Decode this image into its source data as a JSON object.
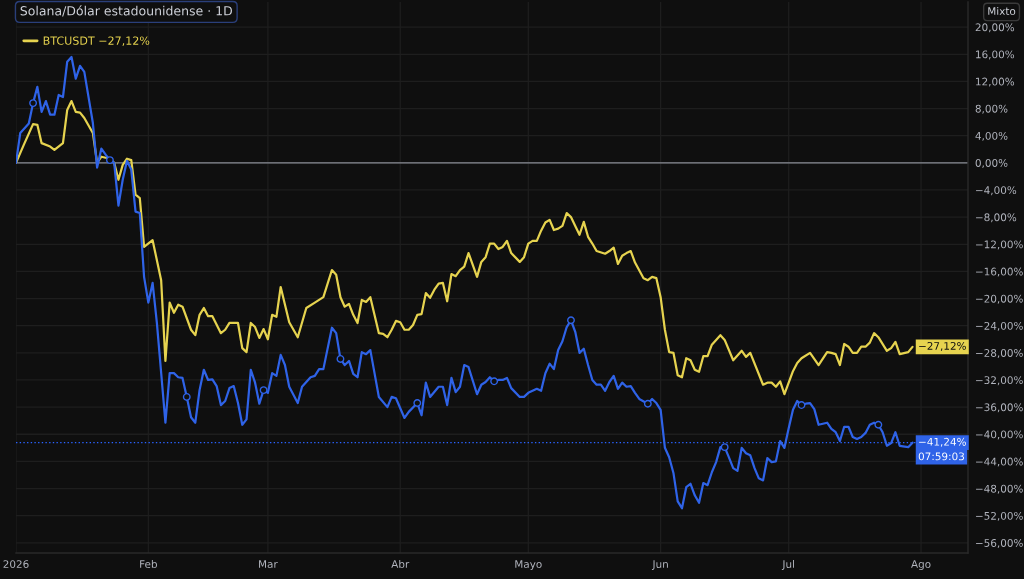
{
  "chart_data": {
    "type": "line",
    "title": "Solana/Dólar estadounidense · 1D",
    "series": [
      {
        "name": "BTCUSDT −27,12%",
        "color": "#e6d34f",
        "x": [
          "2026-01-01",
          "2026-01-03",
          "2026-01-05",
          "2026-01-06",
          "2026-01-07",
          "2026-01-09",
          "2026-01-10",
          "2026-01-12",
          "2026-01-13",
          "2026-01-14",
          "2026-01-15",
          "2026-01-16",
          "2026-01-17",
          "2026-01-19",
          "2026-01-20",
          "2026-01-21",
          "2026-01-23",
          "2026-01-24",
          "2026-01-25",
          "2026-01-26",
          "2026-01-27",
          "2026-01-28",
          "2026-01-29",
          "2026-01-30",
          "2026-01-31",
          "2026-02-02",
          "2026-02-04",
          "2026-02-05",
          "2026-02-06",
          "2026-02-07",
          "2026-02-08",
          "2026-02-09",
          "2026-02-11",
          "2026-02-12",
          "2026-02-13",
          "2026-02-14",
          "2026-02-15",
          "2026-02-16",
          "2026-02-18",
          "2026-02-19",
          "2026-02-20",
          "2026-02-22",
          "2026-02-23",
          "2026-02-24",
          "2026-02-25",
          "2026-02-26",
          "2026-02-27",
          "2026-02-28",
          "2026-03-01",
          "2026-03-02",
          "2026-03-03",
          "2026-03-04",
          "2026-03-06",
          "2026-03-08",
          "2026-03-10",
          "2026-03-12",
          "2026-03-14",
          "2026-03-16",
          "2026-03-17",
          "2026-03-18",
          "2026-03-19",
          "2026-03-20",
          "2026-03-21",
          "2026-03-22",
          "2026-03-23",
          "2026-03-24",
          "2026-03-25",
          "2026-03-27",
          "2026-03-28",
          "2026-03-29",
          "2026-03-30",
          "2026-03-31",
          "2026-04-01",
          "2026-04-02",
          "2026-04-03",
          "2026-04-04",
          "2026-04-05",
          "2026-04-06",
          "2026-04-07",
          "2026-04-08",
          "2026-04-09",
          "2026-04-10",
          "2026-04-11",
          "2026-04-12",
          "2026-04-13",
          "2026-04-14",
          "2026-04-15",
          "2026-04-16",
          "2026-04-17",
          "2026-04-19",
          "2026-04-20",
          "2026-04-21",
          "2026-04-22",
          "2026-04-23",
          "2026-04-24",
          "2026-04-25",
          "2026-04-26",
          "2026-04-27",
          "2026-04-29",
          "2026-04-30",
          "2026-05-01",
          "2026-05-02",
          "2026-05-03",
          "2026-05-04",
          "2026-05-05",
          "2026-05-06",
          "2026-05-07",
          "2026-05-08",
          "2026-05-09",
          "2026-05-10",
          "2026-05-11",
          "2026-05-12",
          "2026-05-13",
          "2026-05-14",
          "2026-05-15",
          "2026-05-16",
          "2026-05-17",
          "2026-05-19",
          "2026-05-20",
          "2026-05-21",
          "2026-05-22",
          "2026-05-23",
          "2026-05-24",
          "2026-05-25",
          "2026-05-26",
          "2026-05-28",
          "2026-05-29",
          "2026-05-30",
          "2026-05-31",
          "2026-06-01",
          "2026-06-02",
          "2026-06-03",
          "2026-06-04",
          "2026-06-05",
          "2026-06-06",
          "2026-06-07",
          "2026-06-08",
          "2026-06-09",
          "2026-06-10",
          "2026-06-11",
          "2026-06-12",
          "2026-06-13",
          "2026-06-15",
          "2026-06-16",
          "2026-06-18",
          "2026-06-20",
          "2026-06-21",
          "2026-06-22",
          "2026-06-25",
          "2026-06-26",
          "2026-06-27",
          "2026-06-28",
          "2026-06-29",
          "2026-06-30",
          "2026-07-02",
          "2026-07-03",
          "2026-07-04",
          "2026-07-06",
          "2026-07-08",
          "2026-07-10",
          "2026-07-11",
          "2026-07-12",
          "2026-07-13",
          "2026-07-14",
          "2026-07-15",
          "2026-07-16",
          "2026-07-17",
          "2026-07-18",
          "2026-07-19",
          "2026-07-20",
          "2026-07-21",
          "2026-07-22",
          "2026-07-24",
          "2026-07-25",
          "2026-07-26",
          "2026-07-27",
          "2026-07-29",
          "2026-07-30"
        ],
        "values": [
          0,
          2.9,
          5.7,
          5.6,
          2.9,
          2.4,
          1.9,
          2.9,
          7.8,
          9.1,
          7.5,
          7.4,
          6.6,
          4.4,
          0,
          0.9,
          0.6,
          0,
          -2.5,
          -0.3,
          0.6,
          0.4,
          -4.7,
          -5.2,
          -12.4,
          -11.4,
          -17.3,
          -29.2,
          -20.6,
          -22.1,
          -20.9,
          -21.2,
          -24.6,
          -25.4,
          -22.4,
          -21.4,
          -22.6,
          -22.6,
          -25.1,
          -24.6,
          -23.6,
          -23.6,
          -27.3,
          -27.9,
          -23.6,
          -24.2,
          -25.8,
          -24.5,
          -26.0,
          -22.4,
          -22.7,
          -18.3,
          -23.5,
          -25.7,
          -21.4,
          -20.6,
          -19.8,
          -15.8,
          -16.5,
          -19.8,
          -21.2,
          -20.8,
          -22.4,
          -23.6,
          -20.2,
          -20.5,
          -19.8,
          -25.1,
          -25.2,
          -25.7,
          -24.6,
          -23.3,
          -23.5,
          -24.6,
          -24.6,
          -23.9,
          -22.4,
          -22.3,
          -19.2,
          -19.9,
          -18.7,
          -17.8,
          -17.7,
          -20.4,
          -16.4,
          -16.7,
          -15.8,
          -15.3,
          -13.3,
          -16.8,
          -14.6,
          -13.9,
          -11.9,
          -11.9,
          -12.7,
          -12.4,
          -11.5,
          -13.3,
          -14.6,
          -13.9,
          -11.9,
          -11.5,
          -11.5,
          -10.0,
          -8.8,
          -8.4,
          -9.9,
          -9.7,
          -9.3,
          -7.4,
          -8.0,
          -9.3,
          -10.6,
          -8.7,
          -10.9,
          -11.9,
          -13.0,
          -13.4,
          -13.0,
          -12.5,
          -14.9,
          -13.7,
          -13.3,
          -13.0,
          -14.7,
          -17.0,
          -17.3,
          -16.8,
          -17.0,
          -19.8,
          -24.6,
          -27.9,
          -28.0,
          -31.3,
          -31.6,
          -28.8,
          -29.1,
          -30.5,
          -30.8,
          -28.5,
          -28.5,
          -26.8,
          -25.4,
          -26.1,
          -29.1,
          -27.7,
          -28.6,
          -28.0,
          -32.7,
          -32.4,
          -32.4,
          -33.0,
          -32.2,
          -34.1,
          -30.7,
          -29.5,
          -28.8,
          -28.0,
          -29.8,
          -27.9,
          -28.0,
          -28.2,
          -29.8,
          -26.7,
          -27.1,
          -28.0,
          -28.0,
          -27.1,
          -27.1,
          -26.5,
          -25.1,
          -25.7,
          -27.7,
          -27.3,
          -26.4,
          -28.2,
          -27.9,
          -27.12
        ]
      },
      {
        "color": "#2f63e8",
        "x": [
          "2026-01-01",
          "2026-01-02",
          "2026-01-04",
          "2026-01-05",
          "2026-01-06",
          "2026-01-07",
          "2026-01-08",
          "2026-01-09",
          "2026-01-10",
          "2026-01-11",
          "2026-01-12",
          "2026-01-13",
          "2026-01-14",
          "2026-01-15",
          "2026-01-16",
          "2026-01-17",
          "2026-01-19",
          "2026-01-20",
          "2026-01-21",
          "2026-01-22",
          "2026-01-23",
          "2026-01-24",
          "2026-01-25",
          "2026-01-26",
          "2026-01-27",
          "2026-01-28",
          "2026-01-29",
          "2026-01-30",
          "2026-01-31",
          "2026-02-01",
          "2026-02-02",
          "2026-02-03",
          "2026-02-05",
          "2026-02-06",
          "2026-02-07",
          "2026-02-08",
          "2026-02-09",
          "2026-02-10",
          "2026-02-11",
          "2026-02-12",
          "2026-02-13",
          "2026-02-14",
          "2026-02-15",
          "2026-02-16",
          "2026-02-17",
          "2026-02-18",
          "2026-02-19",
          "2026-02-20",
          "2026-02-21",
          "2026-02-22",
          "2026-02-23",
          "2026-02-24",
          "2026-02-25",
          "2026-02-26",
          "2026-02-27",
          "2026-02-28",
          "2026-03-01",
          "2026-03-02",
          "2026-03-03",
          "2026-03-04",
          "2026-03-05",
          "2026-03-06",
          "2026-03-08",
          "2026-03-09",
          "2026-03-11",
          "2026-03-12",
          "2026-03-13",
          "2026-03-14",
          "2026-03-16",
          "2026-03-17",
          "2026-03-18",
          "2026-03-19",
          "2026-03-20",
          "2026-03-21",
          "2026-03-22",
          "2026-03-23",
          "2026-03-24",
          "2026-03-25",
          "2026-03-27",
          "2026-03-29",
          "2026-03-30",
          "2026-03-31",
          "2026-04-02",
          "2026-04-03",
          "2026-04-05",
          "2026-04-06",
          "2026-04-07",
          "2026-04-08",
          "2026-04-10",
          "2026-04-11",
          "2026-04-12",
          "2026-04-13",
          "2026-04-14",
          "2026-04-15",
          "2026-04-16",
          "2026-04-17",
          "2026-04-19",
          "2026-04-20",
          "2026-04-21",
          "2026-04-22",
          "2026-04-23",
          "2026-04-24",
          "2026-04-25",
          "2026-04-26",
          "2026-04-27",
          "2026-04-29",
          "2026-04-30",
          "2026-05-01",
          "2026-05-03",
          "2026-05-04",
          "2026-05-05",
          "2026-05-06",
          "2026-05-07",
          "2026-05-08",
          "2026-05-09",
          "2026-05-10",
          "2026-05-11",
          "2026-05-12",
          "2026-05-13",
          "2026-05-14",
          "2026-05-15",
          "2026-05-16",
          "2026-05-17",
          "2026-05-18",
          "2026-05-19",
          "2026-05-20",
          "2026-05-21",
          "2026-05-22",
          "2026-05-23",
          "2026-05-24",
          "2026-05-25",
          "2026-05-26",
          "2026-05-27",
          "2026-05-29",
          "2026-05-30",
          "2026-05-31",
          "2026-06-01",
          "2026-06-02",
          "2026-06-03",
          "2026-06-04",
          "2026-06-05",
          "2026-06-06",
          "2026-06-07",
          "2026-06-08",
          "2026-06-09",
          "2026-06-10",
          "2026-06-11",
          "2026-06-12",
          "2026-06-13",
          "2026-06-14",
          "2026-06-15",
          "2026-06-16",
          "2026-06-17",
          "2026-06-18",
          "2026-06-19",
          "2026-06-20",
          "2026-06-21",
          "2026-06-22",
          "2026-06-23",
          "2026-06-24",
          "2026-06-25",
          "2026-06-26",
          "2026-06-27",
          "2026-06-28",
          "2026-06-29",
          "2026-06-30",
          "2026-07-01",
          "2026-07-02",
          "2026-07-03",
          "2026-07-04",
          "2026-07-05",
          "2026-07-06",
          "2026-07-07",
          "2026-07-08",
          "2026-07-10",
          "2026-07-11",
          "2026-07-12",
          "2026-07-13",
          "2026-07-14",
          "2026-07-15",
          "2026-07-16",
          "2026-07-17",
          "2026-07-18",
          "2026-07-19",
          "2026-07-20",
          "2026-07-21",
          "2026-07-22",
          "2026-07-23",
          "2026-07-24",
          "2026-07-25",
          "2026-07-26",
          "2026-07-27",
          "2026-07-29",
          "2026-07-30"
        ],
        "values": [
          0,
          4.4,
          5.8,
          8.8,
          11.2,
          7.5,
          9.1,
          7.1,
          7.1,
          10.0,
          9.7,
          14.9,
          15.6,
          12.4,
          14.3,
          13.4,
          5.9,
          -0.7,
          2.1,
          1.2,
          0.4,
          0,
          -6.3,
          -2.5,
          0.3,
          -1.0,
          -7.2,
          -7.4,
          -16.8,
          -20.6,
          -17.7,
          -23.6,
          -38.3,
          -31.0,
          -31.0,
          -31.6,
          -31.7,
          -34.5,
          -37.5,
          -38.3,
          -33.5,
          -30.5,
          -32.0,
          -31.9,
          -32.9,
          -35.7,
          -35.1,
          -33.2,
          -32.9,
          -35.4,
          -38.6,
          -37.8,
          -30.5,
          -32.4,
          -35.5,
          -33.5,
          -33.9,
          -31.0,
          -31.4,
          -28.3,
          -29.8,
          -33.0,
          -35.4,
          -33.0,
          -31.6,
          -31.4,
          -30.4,
          -30.4,
          -24.3,
          -25.1,
          -28.9,
          -29.8,
          -29.2,
          -31.1,
          -31.6,
          -27.9,
          -28.2,
          -27.6,
          -34.5,
          -36.0,
          -34.5,
          -34.7,
          -37.6,
          -36.7,
          -35.4,
          -37.2,
          -32.4,
          -34.5,
          -33.0,
          -33.0,
          -35.7,
          -31.7,
          -33.8,
          -33.0,
          -29.8,
          -30.1,
          -34.1,
          -32.7,
          -32.3,
          -31.6,
          -32.2,
          -32.0,
          -32.0,
          -31.7,
          -33.2,
          -34.5,
          -34.5,
          -33.9,
          -33.3,
          -33.6,
          -31.0,
          -29.6,
          -30.4,
          -27.6,
          -26.3,
          -24.2,
          -23.2,
          -24.9,
          -28.0,
          -27.4,
          -29.8,
          -32.0,
          -32.7,
          -32.7,
          -33.6,
          -32.3,
          -31.4,
          -33.3,
          -32.4,
          -33.0,
          -32.9,
          -33.9,
          -34.8,
          -35.5,
          -34.8,
          -35.4,
          -36.4,
          -42.0,
          -43.4,
          -45.7,
          -49.9,
          -50.9,
          -47.8,
          -47.3,
          -49.0,
          -50.1,
          -47.2,
          -47.5,
          -45.6,
          -44.1,
          -41.9,
          -41.9,
          -43.4,
          -45.0,
          -45.4,
          -42.0,
          -42.8,
          -43.1,
          -45.0,
          -46.5,
          -46.8,
          -43.5,
          -44.1,
          -44.0,
          -41.0,
          -42.0,
          -39.1,
          -36.4,
          -35.1,
          -35.7,
          -35.5,
          -35.4,
          -36.3,
          -38.6,
          -38.3,
          -39.2,
          -39.7,
          -41.0,
          -38.9,
          -38.9,
          -40.4,
          -40.7,
          -40.4,
          -39.8,
          -38.6,
          -38.3,
          -38.6,
          -39.7,
          -41.7,
          -41.3,
          -39.7,
          -41.7,
          -41.9,
          -41.24
        ]
      },
      {
        "type": "scatter",
        "color": "#2f63e8",
        "marker": "circle",
        "x": [
          "2026-01-05",
          "2026-01-23",
          "2026-02-10",
          "2026-02-28",
          "2026-03-18",
          "2026-04-05",
          "2026-04-23",
          "2026-05-11",
          "2026-05-29",
          "2026-06-16",
          "2026-07-04",
          "2026-07-22"
        ],
        "values": [
          8.8,
          0.4,
          -34.5,
          -33.5,
          -28.9,
          -35.4,
          -32.2,
          -23.2,
          -35.5,
          -41.9,
          -35.7,
          -38.6
        ]
      }
    ],
    "xlim": [
      "2026-01-01",
      "2026-08-12"
    ],
    "xticks": [
      {
        "value": "2026-01-01",
        "label": "2026"
      },
      {
        "value": "2026-02-01",
        "label": "Feb"
      },
      {
        "value": "2026-03-01",
        "label": "Mar"
      },
      {
        "value": "2026-04-01",
        "label": "Abr"
      },
      {
        "value": "2026-05-01",
        "label": "Mayo"
      },
      {
        "value": "2026-06-01",
        "label": "Jun"
      },
      {
        "value": "2026-07-01",
        "label": "Jul"
      },
      {
        "value": "2026-08-01",
        "label": "Ago"
      }
    ],
    "ylim": [
      -57.5,
      23.7
    ],
    "yticks": [
      {
        "value": 20,
        "label": "20,00%"
      },
      {
        "value": 16,
        "label": "16,00%"
      },
      {
        "value": 12,
        "label": "12,00%"
      },
      {
        "value": 8,
        "label": "8,00%"
      },
      {
        "value": 4,
        "label": "4,00%"
      },
      {
        "value": 0,
        "label": "0,00%"
      },
      {
        "value": -4,
        "label": "−4,00%"
      },
      {
        "value": -8,
        "label": "−8,00%"
      },
      {
        "value": -12,
        "label": "−12,00%"
      },
      {
        "value": -16,
        "label": "−16,00%"
      },
      {
        "value": -20,
        "label": "−20,00%"
      },
      {
        "value": -24,
        "label": "−24,00%"
      },
      {
        "value": -28,
        "label": "−28,00%"
      },
      {
        "value": -32,
        "label": "−32,00%"
      },
      {
        "value": -36,
        "label": "−36,00%"
      },
      {
        "value": -40,
        "label": "−40,00%"
      },
      {
        "value": -44,
        "label": "−44,00%"
      },
      {
        "value": -48,
        "label": "−48,00%"
      },
      {
        "value": -52,
        "label": "−52,00%"
      },
      {
        "value": -56,
        "label": "−56,00%"
      }
    ],
    "ref_lines": [
      {
        "axis": "y",
        "value": 0,
        "color": "#8a8d96",
        "line_style": "solid"
      },
      {
        "axis": "y",
        "value": -41.24,
        "color": "#2962ff",
        "line_style": "dotted"
      }
    ],
    "annotations": [
      {
        "text": "−27,12%",
        "x": "2026-07-30",
        "y": -27.12
      },
      {
        "text": "−41,24%",
        "x": "2026-07-30",
        "y": -41.24
      },
      {
        "text": "07:59:03",
        "x": "2026-07-30",
        "y": -41.24
      },
      "Mixto"
    ],
    "grid": true,
    "legend": "top left"
  }
}
